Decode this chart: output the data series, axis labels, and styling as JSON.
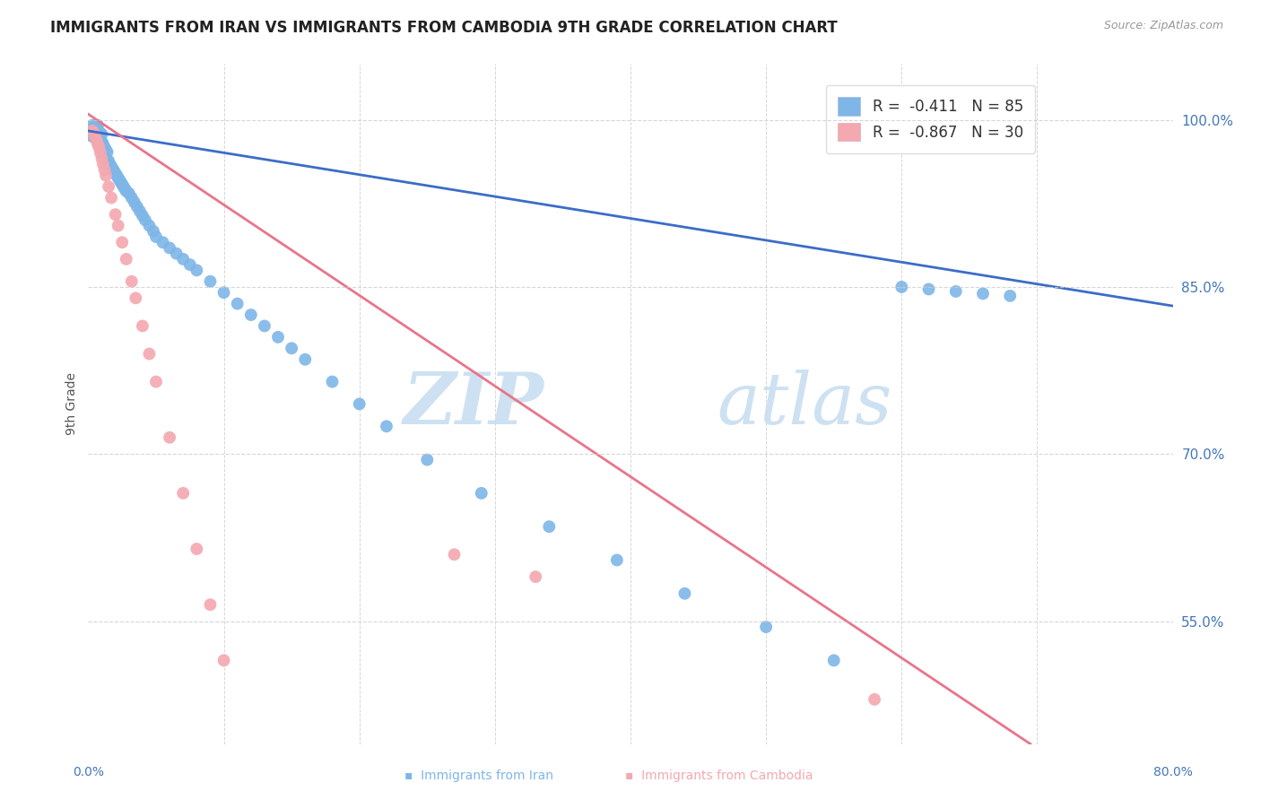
{
  "title": "IMMIGRANTS FROM IRAN VS IMMIGRANTS FROM CAMBODIA 9TH GRADE CORRELATION CHART",
  "source": "Source: ZipAtlas.com",
  "ylabel": "9th Grade",
  "ytick_values": [
    0.55,
    0.7,
    0.85,
    1.0
  ],
  "ytick_labels": [
    "55.0%",
    "70.0%",
    "85.0%",
    "100.0%"
  ],
  "xmin": 0.0,
  "xmax": 0.8,
  "ymin": 0.44,
  "ymax": 1.05,
  "iran_color": "#7EB6E8",
  "cambodia_color": "#F4A8B0",
  "iran_line_color": "#3B6DC7",
  "cambodia_line_color": "#E8758A",
  "watermark_zip": "ZIP",
  "watermark_atlas": "atlas",
  "iran_trend_x": [
    0.0,
    0.8
  ],
  "iran_trend_y": [
    0.99,
    0.833
  ],
  "cambodia_trend_x": [
    0.0,
    0.695
  ],
  "cambodia_trend_y": [
    1.005,
    0.44
  ],
  "iran_scatter_x": [
    0.002,
    0.003,
    0.003,
    0.004,
    0.004,
    0.005,
    0.005,
    0.005,
    0.006,
    0.006,
    0.006,
    0.007,
    0.007,
    0.007,
    0.007,
    0.008,
    0.008,
    0.008,
    0.009,
    0.009,
    0.009,
    0.01,
    0.01,
    0.01,
    0.011,
    0.011,
    0.012,
    0.012,
    0.013,
    0.013,
    0.014,
    0.014,
    0.015,
    0.016,
    0.017,
    0.018,
    0.019,
    0.02,
    0.021,
    0.022,
    0.023,
    0.024,
    0.025,
    0.026,
    0.027,
    0.028,
    0.03,
    0.032,
    0.034,
    0.036,
    0.038,
    0.04,
    0.042,
    0.045,
    0.048,
    0.05,
    0.055,
    0.06,
    0.065,
    0.07,
    0.075,
    0.08,
    0.09,
    0.1,
    0.11,
    0.12,
    0.13,
    0.14,
    0.15,
    0.16,
    0.18,
    0.2,
    0.22,
    0.25,
    0.29,
    0.34,
    0.39,
    0.44,
    0.5,
    0.55,
    0.6,
    0.62,
    0.64,
    0.66,
    0.68
  ],
  "iran_scatter_y": [
    0.99,
    0.985,
    0.995,
    0.988,
    0.992,
    0.985,
    0.99,
    0.995,
    0.982,
    0.988,
    0.993,
    0.98,
    0.985,
    0.99,
    0.995,
    0.978,
    0.983,
    0.988,
    0.975,
    0.982,
    0.988,
    0.973,
    0.98,
    0.987,
    0.97,
    0.978,
    0.968,
    0.975,
    0.966,
    0.973,
    0.964,
    0.971,
    0.963,
    0.96,
    0.958,
    0.956,
    0.954,
    0.952,
    0.95,
    0.948,
    0.946,
    0.944,
    0.942,
    0.94,
    0.938,
    0.936,
    0.934,
    0.93,
    0.926,
    0.922,
    0.918,
    0.914,
    0.91,
    0.905,
    0.9,
    0.895,
    0.89,
    0.885,
    0.88,
    0.875,
    0.87,
    0.865,
    0.855,
    0.845,
    0.835,
    0.825,
    0.815,
    0.805,
    0.795,
    0.785,
    0.765,
    0.745,
    0.725,
    0.695,
    0.665,
    0.635,
    0.605,
    0.575,
    0.545,
    0.515,
    0.85,
    0.848,
    0.846,
    0.844,
    0.842
  ],
  "cambodia_scatter_x": [
    0.003,
    0.004,
    0.005,
    0.006,
    0.007,
    0.008,
    0.009,
    0.01,
    0.011,
    0.012,
    0.013,
    0.015,
    0.017,
    0.02,
    0.022,
    0.025,
    0.028,
    0.032,
    0.035,
    0.04,
    0.045,
    0.05,
    0.06,
    0.07,
    0.08,
    0.09,
    0.1,
    0.27,
    0.33,
    0.58
  ],
  "cambodia_scatter_y": [
    0.99,
    0.988,
    0.985,
    0.982,
    0.978,
    0.975,
    0.97,
    0.965,
    0.96,
    0.955,
    0.95,
    0.94,
    0.93,
    0.915,
    0.905,
    0.89,
    0.875,
    0.855,
    0.84,
    0.815,
    0.79,
    0.765,
    0.715,
    0.665,
    0.615,
    0.565,
    0.515,
    0.61,
    0.59,
    0.48
  ]
}
